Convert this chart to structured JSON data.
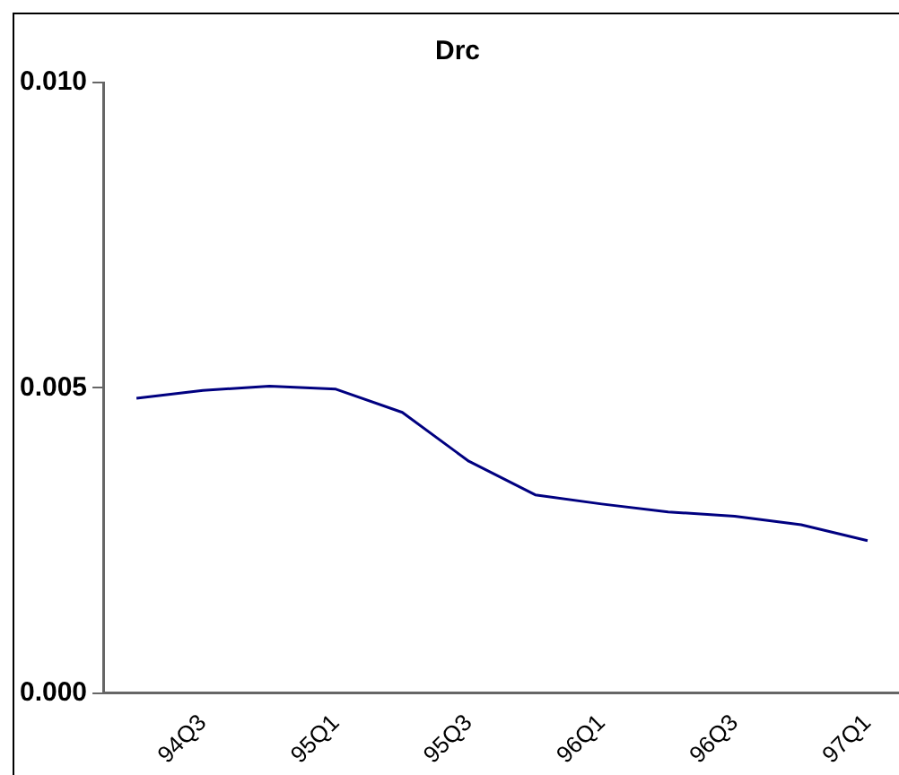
{
  "chart_data": {
    "type": "line",
    "title": "Drc",
    "categories": [
      null,
      "94Q3",
      null,
      "95Q1",
      null,
      "95Q3",
      null,
      "96Q1",
      null,
      "96Q3",
      null,
      "97Q1"
    ],
    "series": [
      {
        "color": "#000080",
        "values": [
          0.00483,
          0.00496,
          0.00503,
          0.00498,
          0.0046,
          0.0038,
          0.00325,
          0.0031,
          0.00297,
          0.0029,
          0.00276,
          0.0025
        ]
      }
    ],
    "ylim": [
      0,
      0.01
    ],
    "yticks": [
      {
        "value": 0,
        "label": "0.000"
      },
      {
        "value": 0.005,
        "label": "0.005"
      },
      {
        "value": 0.01,
        "label": "0.010"
      }
    ],
    "grid": false,
    "legend": false,
    "marker": "none",
    "line_style": "solid"
  }
}
